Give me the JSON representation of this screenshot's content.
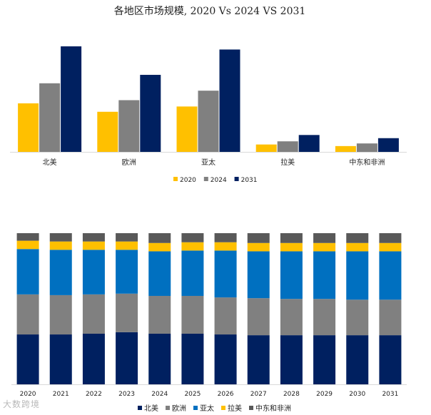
{
  "chart_data": [
    {
      "type": "bar",
      "title": "各地区市场规模, 2020 Vs 2024 VS 2031",
      "categories": [
        "北美",
        "欧洲",
        "亚太",
        "拉美",
        "中东和非洲"
      ],
      "series": [
        {
          "name": "2020",
          "color": "#FFC000",
          "values": [
            46,
            38,
            43,
            7,
            5.5
          ]
        },
        {
          "name": "2024",
          "color": "#808080",
          "values": [
            65,
            49,
            58,
            10,
            8
          ]
        },
        {
          "name": "2031",
          "color": "#002060",
          "values": [
            100,
            73,
            97,
            16,
            13
          ]
        }
      ],
      "ylim": [
        0,
        100
      ],
      "legend": "bottom"
    },
    {
      "type": "bar",
      "stacked": "percent",
      "categories": [
        "2020",
        "2021",
        "2022",
        "2023",
        "2024",
        "2025",
        "2026",
        "2027",
        "2028",
        "2029",
        "2030",
        "2031"
      ],
      "series": [
        {
          "name": "北美",
          "color": "#002060",
          "values": [
            33,
            33,
            33.5,
            34.5,
            33.5,
            33.5,
            33,
            32.5,
            32.5,
            32.5,
            32.5,
            32.5
          ]
        },
        {
          "name": "欧洲",
          "color": "#808080",
          "values": [
            26.5,
            26,
            26,
            25.5,
            25,
            25,
            24.5,
            24.5,
            24,
            24,
            23.5,
            23.5
          ]
        },
        {
          "name": "亚太",
          "color": "#0070C0",
          "values": [
            30,
            30,
            29.5,
            29,
            29.5,
            30,
            31,
            31,
            31.5,
            31.5,
            32,
            32
          ]
        },
        {
          "name": "拉美",
          "color": "#FFC000",
          "values": [
            5.5,
            5.5,
            5.5,
            5.5,
            5.5,
            5.5,
            5.5,
            5.5,
            5.5,
            5.5,
            5.5,
            5.5
          ]
        },
        {
          "name": "中东和非洲",
          "color": "#595959",
          "values": [
            5,
            5.5,
            5.5,
            5.5,
            6.5,
            6,
            6,
            6.5,
            6.5,
            6.5,
            6.5,
            6.5
          ]
        }
      ],
      "ylim": [
        0,
        100
      ],
      "legend": "bottom"
    }
  ],
  "watermark": "大数跨境"
}
